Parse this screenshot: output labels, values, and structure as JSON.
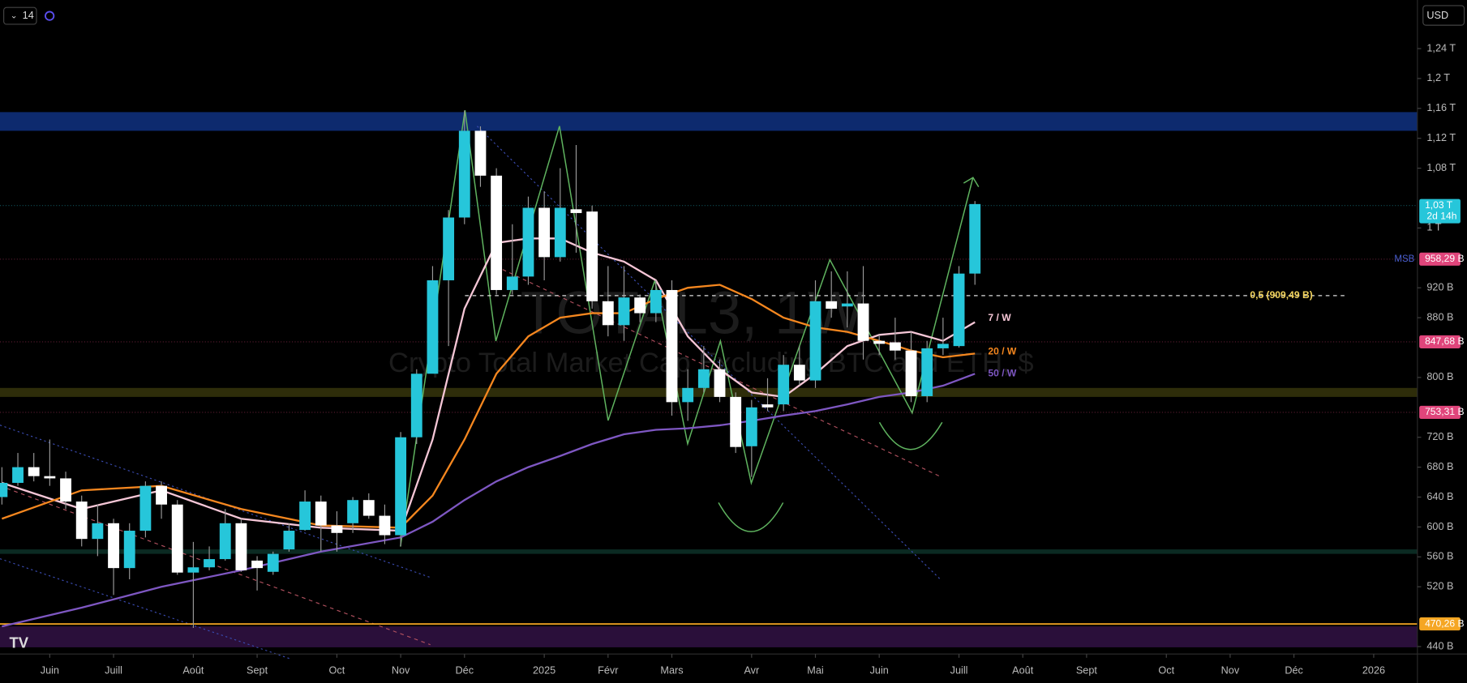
{
  "toolbar": {
    "interval": "14",
    "currency": "USD"
  },
  "chart_data": {
    "type": "candlestick",
    "watermark": "TOTAL3, 1W",
    "watermark_subtitle": "Crypto Total Market Cap Excluding BTC and ETH, $",
    "up_color": "#26c6da",
    "down_color": "#ffffff",
    "xlim": [
      -0.12,
      88.74
    ],
    "ylim": [
      430,
      1305
    ],
    "xticks": [
      {
        "value": 3,
        "label": "Juin"
      },
      {
        "value": 7,
        "label": "Juill"
      },
      {
        "value": 12,
        "label": "Août"
      },
      {
        "value": 16,
        "label": "Sept"
      },
      {
        "value": 21,
        "label": "Oct"
      },
      {
        "value": 25,
        "label": "Nov"
      },
      {
        "value": 29,
        "label": "Déc"
      },
      {
        "value": 34,
        "label": "2025"
      },
      {
        "value": 38,
        "label": "Févr"
      },
      {
        "value": 42,
        "label": "Mars"
      },
      {
        "value": 47,
        "label": "Avr"
      },
      {
        "value": 51,
        "label": "Mai"
      },
      {
        "value": 55,
        "label": "Juin"
      },
      {
        "value": 60,
        "label": "Juill"
      },
      {
        "value": 64,
        "label": "Août"
      },
      {
        "value": 68,
        "label": "Sept"
      },
      {
        "value": 73,
        "label": "Oct"
      },
      {
        "value": 77,
        "label": "Nov"
      },
      {
        "value": 81,
        "label": "Déc"
      },
      {
        "value": 86,
        "label": "2026"
      }
    ],
    "yticks": [
      {
        "value": 1240,
        "label": "1,24 T"
      },
      {
        "value": 1200,
        "label": "1,2 T"
      },
      {
        "value": 1160,
        "label": "1,16 T"
      },
      {
        "value": 1120,
        "label": "1,12 T"
      },
      {
        "value": 1080,
        "label": "1,08 T"
      },
      {
        "value": 1000,
        "label": "1 T"
      },
      {
        "value": 920,
        "label": "920 B"
      },
      {
        "value": 880,
        "label": "880 B"
      },
      {
        "value": 800,
        "label": "800 B"
      },
      {
        "value": 720,
        "label": "720 B"
      },
      {
        "value": 680,
        "label": "680 B"
      },
      {
        "value": 640,
        "label": "640 B"
      },
      {
        "value": 600,
        "label": "600 B"
      },
      {
        "value": 560,
        "label": "560 B"
      },
      {
        "value": 520,
        "label": "520 B"
      },
      {
        "value": 440,
        "label": "440 B"
      }
    ],
    "candles": {
      "open": [
        640,
        659,
        680,
        668,
        665,
        634,
        584,
        605,
        545,
        595,
        655,
        630,
        539,
        546,
        557,
        605,
        555,
        540,
        570,
        596,
        634,
        602,
        605,
        636,
        615,
        589,
        720,
        805,
        930,
        1014,
        1130,
        1070,
        917,
        935,
        1027,
        961,
        1025,
        1022,
        902,
        870,
        907,
        886,
        917,
        767,
        786,
        811,
        774,
        708,
        764,
        764,
        817,
        796,
        902,
        895,
        899,
        849,
        847,
        836,
        775,
        839,
        842,
        939
      ],
      "high": [
        680,
        699,
        699,
        717,
        674,
        642,
        630,
        611,
        605,
        661,
        661,
        636,
        580,
        574,
        624,
        611,
        561,
        567,
        605,
        649,
        642,
        621,
        640,
        645,
        630,
        727,
        811,
        949,
        1024,
        1157,
        1136,
        1080,
        1005,
        1042,
        1049,
        1080,
        1111,
        1030,
        949,
        949,
        911,
        930,
        930,
        811,
        842,
        824,
        780,
        770,
        799,
        830,
        842,
        930,
        942,
        942,
        949,
        857,
        880,
        861,
        849,
        880,
        949,
        1036
      ],
      "low": [
        630,
        655,
        661,
        655,
        624,
        574,
        561,
        509,
        530,
        586,
        611,
        536,
        465,
        542,
        555,
        540,
        515,
        536,
        567,
        595,
        567,
        567,
        592,
        611,
        577,
        574,
        711,
        811,
        842,
        1005,
        1055,
        911,
        911,
        924,
        930,
        955,
        967,
        892,
        855,
        849,
        874,
        874,
        749,
        742,
        780,
        767,
        699,
        667,
        755,
        755,
        790,
        786,
        880,
        867,
        824,
        830,
        824,
        767,
        767,
        830,
        840,
        924
      ],
      "close": [
        659,
        680,
        668,
        665,
        634,
        584,
        605,
        545,
        595,
        655,
        630,
        539,
        546,
        557,
        605,
        542,
        545,
        564,
        595,
        634,
        602,
        592,
        636,
        615,
        589,
        720,
        805,
        930,
        1014,
        1130,
        1070,
        917,
        935,
        1027,
        961,
        1027,
        1020,
        902,
        870,
        907,
        886,
        917,
        767,
        786,
        811,
        774,
        707,
        760,
        760,
        817,
        796,
        902,
        892,
        899,
        849,
        845,
        836,
        775,
        839,
        845,
        939,
        1032
      ]
    },
    "series": [
      {
        "name": "7 / W",
        "color": "#f5c6d6",
        "x": [
          0,
          5,
          10,
          15,
          20,
          25,
          27,
          29,
          31,
          33,
          35,
          37,
          39,
          41,
          43,
          45,
          47,
          49,
          51,
          53,
          55,
          57,
          59,
          61
        ],
        "values": [
          659,
          624,
          649,
          611,
          599,
          595,
          717,
          892,
          980,
          986,
          986,
          967,
          955,
          930,
          855,
          811,
          780,
          774,
          805,
          842,
          857,
          861,
          849,
          874
        ]
      },
      {
        "name": "20 / W",
        "color": "#f5871f",
        "x": [
          0,
          5,
          10,
          15,
          20,
          25,
          27,
          29,
          31,
          33,
          35,
          37,
          39,
          41,
          43,
          45,
          47,
          49,
          51,
          53,
          55,
          57,
          59,
          61
        ],
        "values": [
          611,
          649,
          655,
          624,
          602,
          599,
          642,
          717,
          805,
          855,
          880,
          886,
          886,
          905,
          920,
          924,
          905,
          880,
          867,
          861,
          849,
          836,
          827,
          832
        ]
      },
      {
        "name": "50 / W",
        "color": "#7e57c2",
        "x": [
          0,
          5,
          10,
          15,
          20,
          25,
          27,
          29,
          31,
          33,
          35,
          37,
          39,
          41,
          43,
          45,
          47,
          49,
          51,
          53,
          55,
          57,
          59,
          61
        ],
        "values": [
          467,
          492,
          520,
          542,
          567,
          586,
          607,
          636,
          661,
          680,
          695,
          711,
          724,
          730,
          732,
          736,
          742,
          749,
          755,
          764,
          774,
          780,
          789,
          805
        ]
      }
    ],
    "zones": [
      {
        "from": 1130,
        "to": 1155,
        "color": "#0d2a6e"
      },
      {
        "from": 774,
        "to": 786,
        "color": "#2e2d0a"
      },
      {
        "from": 564,
        "to": 570,
        "color": "#0b2a22"
      },
      {
        "from": 439,
        "to": 467,
        "color": "#2a0f3a"
      }
    ],
    "levels": [
      {
        "value": 1030,
        "label": "1,03 T",
        "sublabel": "2d 14h",
        "color": "#26c6da"
      },
      {
        "value": 958.29,
        "label": "958,29 B",
        "note": "MSB",
        "color": "#e0457b"
      },
      {
        "value": 847.68,
        "label": "847,68 B",
        "color": "#e0457b"
      },
      {
        "value": 753.31,
        "label": "753,31 B",
        "color": "#e0457b"
      },
      {
        "value": 470.26,
        "label": "470,26 B",
        "color": "#f5a623"
      }
    ],
    "fib": {
      "value": 909.49,
      "label": "0,5 (909,49 B)",
      "color": "#f2d35b"
    }
  }
}
